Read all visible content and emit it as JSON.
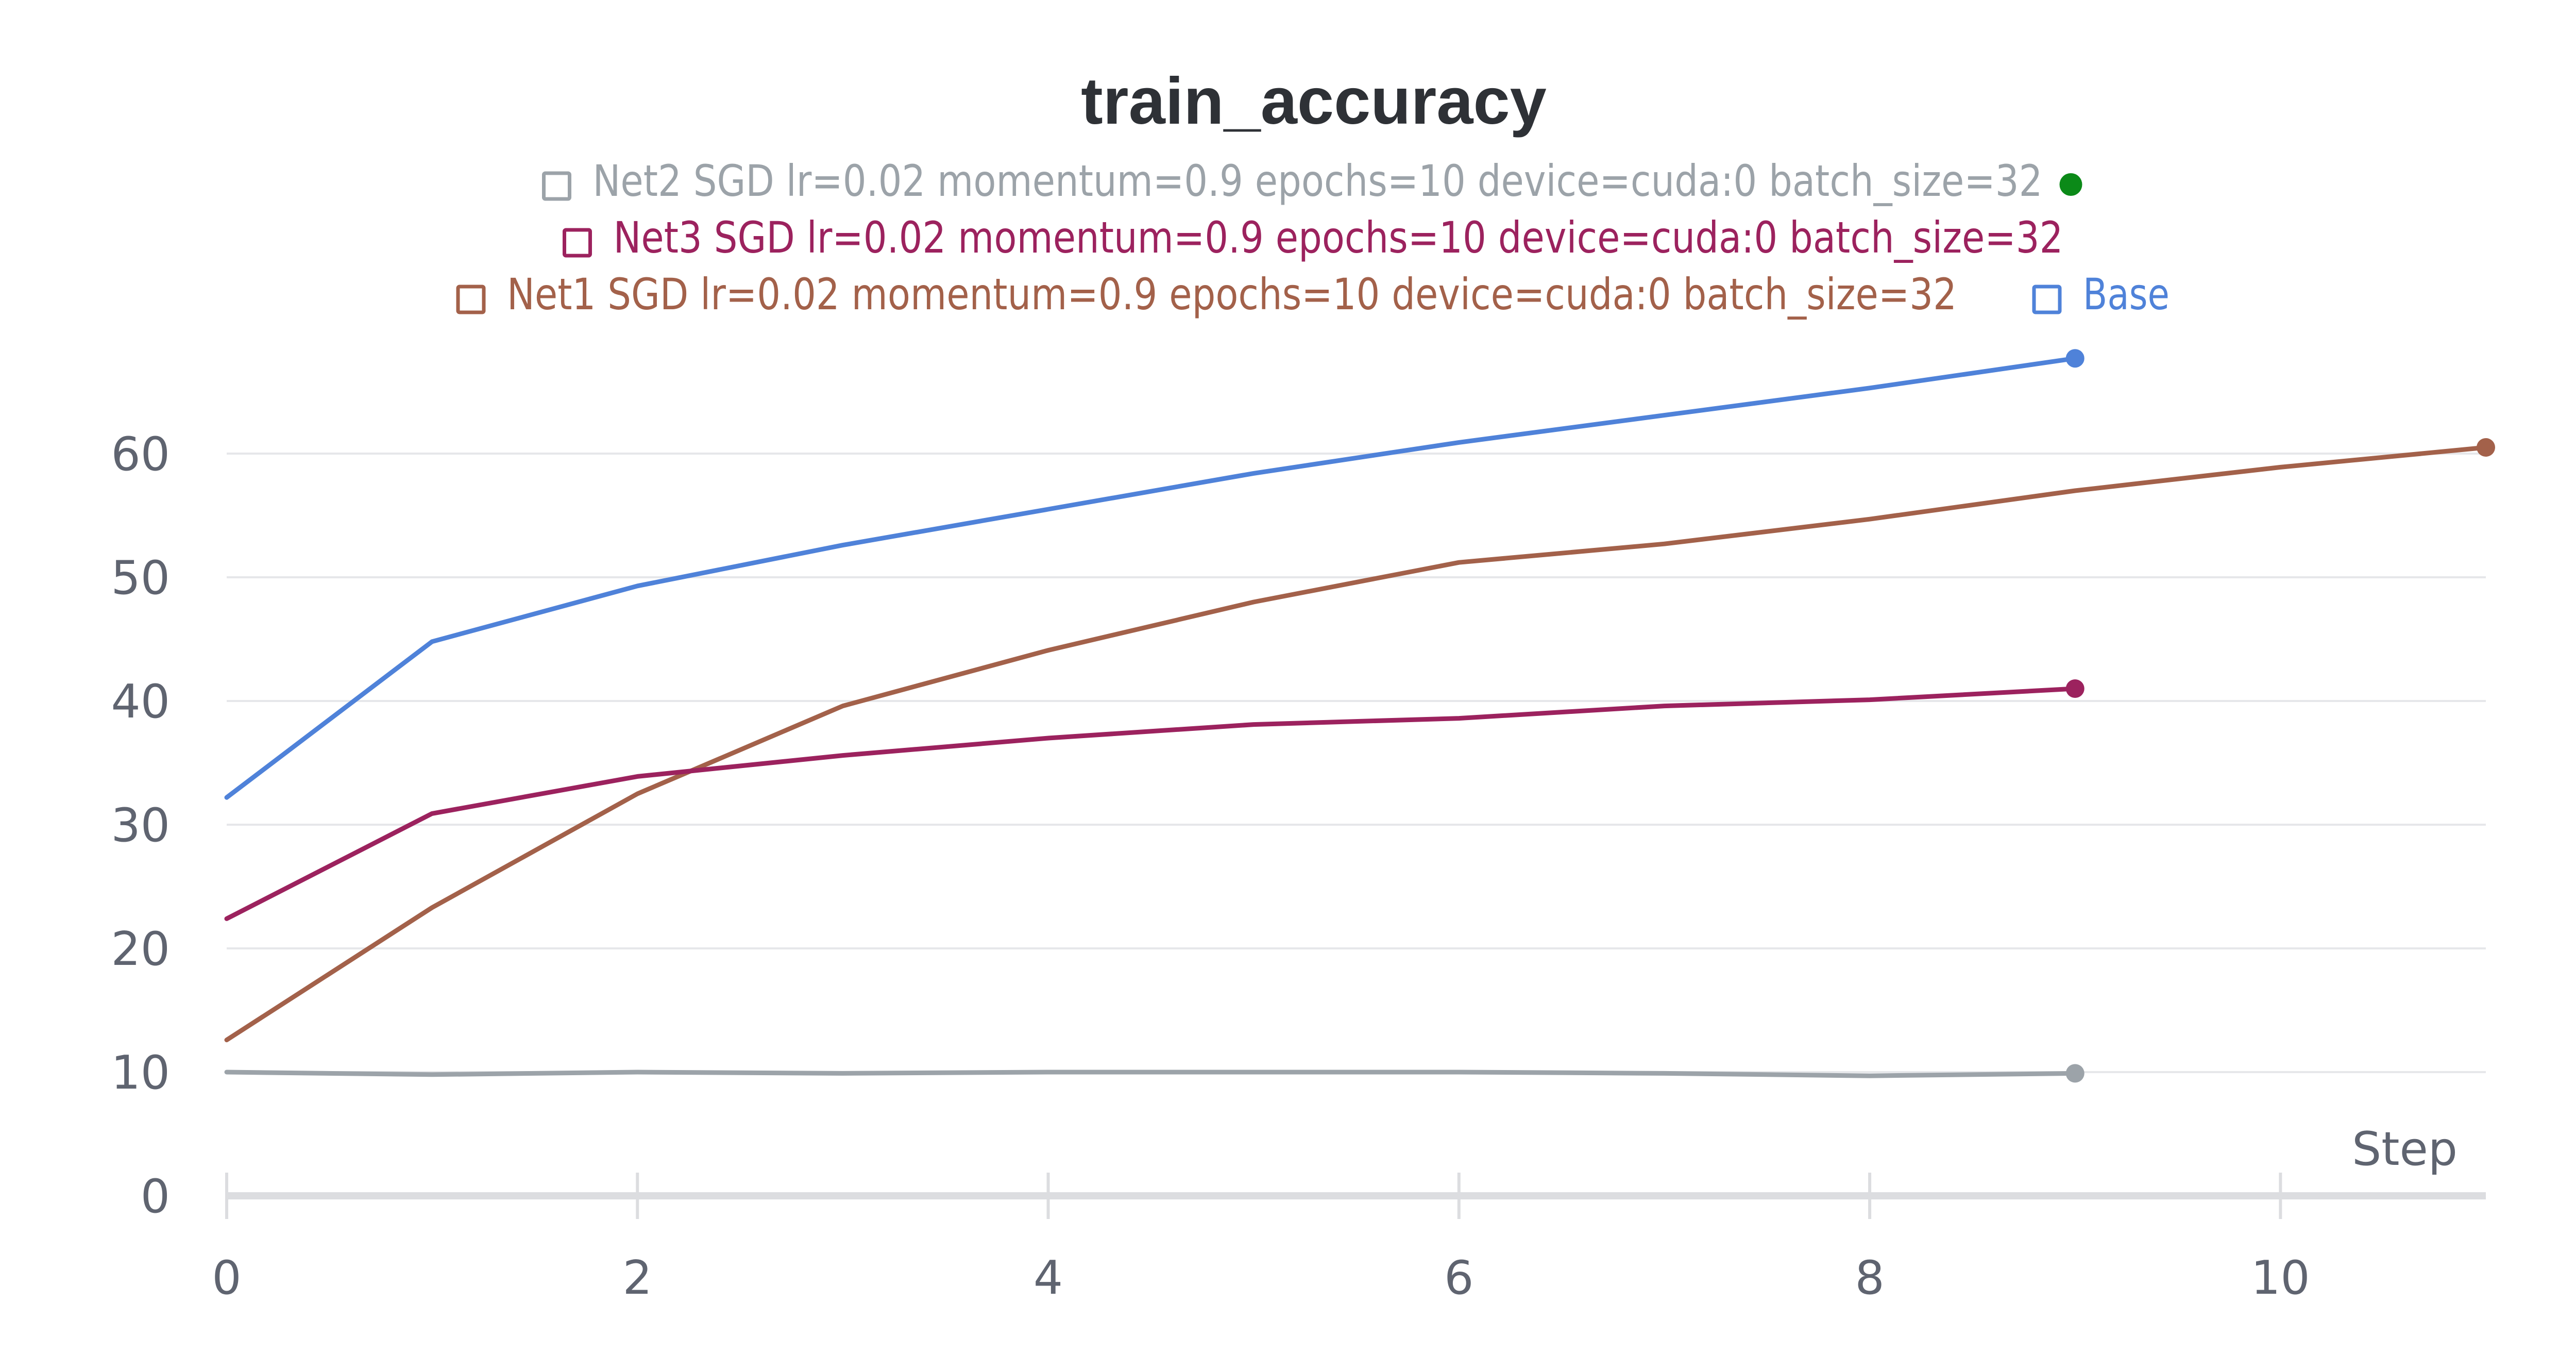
{
  "chart_data": {
    "type": "line",
    "title": "train_accuracy",
    "xlabel": "Step",
    "ylabel": "",
    "xlim": [
      0,
      11
    ],
    "ylim": [
      0,
      66
    ],
    "x_ticks": [
      0,
      2,
      4,
      6,
      8,
      10
    ],
    "y_ticks": [
      0,
      10,
      20,
      30,
      40,
      50,
      60
    ],
    "grid": "horizontal",
    "legend_position": "top",
    "legend": [
      {
        "label": "Net2 SGD lr=0.02 momentum=0.9 epochs=10 device=cuda:0 batch_size=32",
        "color": "#9ca3a9"
      },
      {
        "label": "Net3 SGD lr=0.02 momentum=0.9 epochs=10 device=cuda:0 batch_size=32",
        "color": "#9c225e"
      },
      {
        "label": "Net1 SGD lr=0.02 momentum=0.9 epochs=10 device=cuda:0 batch_size=32",
        "color": "#a3614a"
      },
      {
        "label": "Base",
        "color": "#4f82d9"
      }
    ],
    "legend_marker_color": "#0b8a18",
    "series": [
      {
        "name": "Base",
        "color": "#4f82d9",
        "x": [
          0,
          1,
          2,
          3,
          4,
          5,
          6,
          7,
          8,
          9
        ],
        "y": [
          32.2,
          44.8,
          49.3,
          52.6,
          55.5,
          58.4,
          60.9,
          63.1,
          65.3,
          67.7
        ]
      },
      {
        "name": "Net1 SGD lr=0.02 momentum=0.9 epochs=10 device=cuda:0 batch_size=32",
        "color": "#a3614a",
        "x": [
          0,
          1,
          2,
          3,
          4,
          5,
          6,
          7,
          8,
          9,
          10,
          11
        ],
        "y": [
          12.6,
          23.3,
          32.5,
          39.6,
          44.1,
          48.0,
          51.2,
          52.7,
          54.7,
          57.0,
          58.9,
          60.5
        ]
      },
      {
        "name": "Net3 SGD lr=0.02 momentum=0.9 epochs=10 device=cuda:0 batch_size=32",
        "color": "#9c225e",
        "x": [
          0,
          1,
          2,
          3,
          4,
          5,
          6,
          7,
          8,
          9
        ],
        "y": [
          22.4,
          30.9,
          33.9,
          35.6,
          37.0,
          38.1,
          38.6,
          39.6,
          40.1,
          41.0
        ]
      },
      {
        "name": "Net2 SGD lr=0.02 momentum=0.9 epochs=10 device=cuda:0 batch_size=32",
        "color": "#9ca3a9",
        "x": [
          0,
          1,
          2,
          3,
          4,
          5,
          6,
          7,
          8,
          9
        ],
        "y": [
          10.0,
          9.8,
          10.0,
          9.9,
          10.0,
          10.0,
          10.0,
          9.9,
          9.7,
          9.9
        ]
      }
    ]
  }
}
